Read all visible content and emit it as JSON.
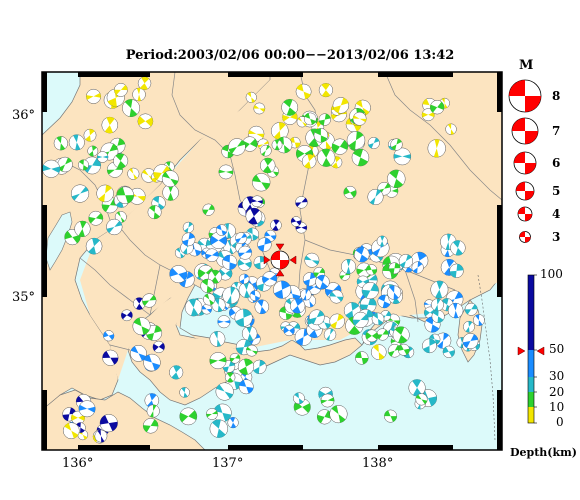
{
  "title": "Period:2003/02/06 00:00−−2013/02/06 13:42",
  "axes": {
    "lon_ticks": [
      "136°",
      "137°",
      "138°"
    ],
    "lat_ticks": [
      "36°",
      "35°"
    ]
  },
  "magnitude_legend": {
    "title": "M",
    "items": [
      "8",
      "7",
      "6",
      "5",
      "4",
      "3"
    ]
  },
  "depth_legend": {
    "label": "Depth(km)",
    "ticks": [
      "100",
      "50",
      "30",
      "20",
      "10",
      "0"
    ],
    "colors": {
      "0-10": "#f2e600",
      "10-20": "#2ed12e",
      "20-30": "#26b8c8",
      "30-50": "#1a8cff",
      "50-100": "#0a0aa0"
    }
  },
  "colors": {
    "land": "#fce4c0",
    "sea": "#dcfafa",
    "mainshock": "#ff0000"
  }
}
